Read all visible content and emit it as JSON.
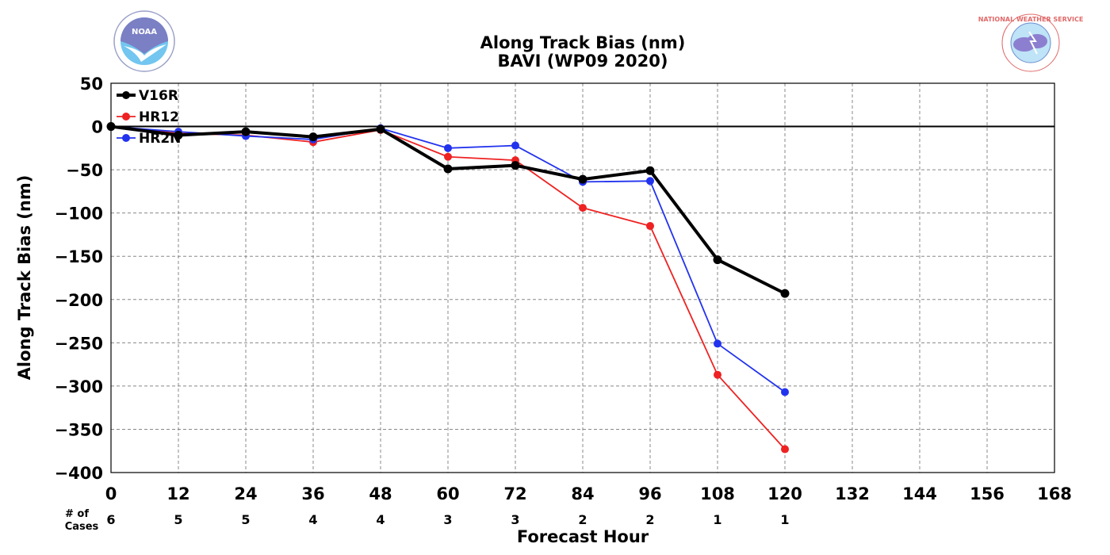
{
  "chart_data": {
    "type": "line",
    "title": "Along Track Bias (nm)",
    "subtitle": "BAVI (WP09 2020)",
    "xlabel": "Forecast Hour",
    "ylabel": "Along Track Bias (nm)",
    "xlim": [
      0,
      168
    ],
    "ylim": [
      -400,
      50
    ],
    "x_ticks": [
      "0",
      "12",
      "24",
      "36",
      "48",
      "60",
      "72",
      "84",
      "96",
      "108",
      "120",
      "132",
      "144",
      "156",
      "168"
    ],
    "y_ticks": [
      "50",
      "0",
      "−50",
      "−100",
      "−150",
      "−200",
      "−250",
      "−300",
      "−350",
      "−400"
    ],
    "grid": true,
    "legend_position": "top-left",
    "cases_label": "# of Cases",
    "cases_label_lines": [
      "# of",
      "Cases"
    ],
    "cases": [
      "6",
      "5",
      "5",
      "4",
      "4",
      "3",
      "3",
      "2",
      "2",
      "1",
      "1"
    ],
    "x": [
      0,
      12,
      24,
      36,
      48,
      60,
      72,
      84,
      96,
      108,
      120
    ],
    "series": [
      {
        "name": "V16R",
        "color": "#000000",
        "values": [
          0,
          -10,
          -6,
          -12,
          -3,
          -49,
          -45,
          -61,
          -51,
          -154,
          -193
        ]
      },
      {
        "name": "HR12",
        "color": "#ee2222",
        "values": [
          0,
          -8,
          -10,
          -18,
          -4,
          -35,
          -39,
          -94,
          -115,
          -287,
          -373
        ]
      },
      {
        "name": "HR2N",
        "color": "#2233ee",
        "values": [
          0,
          -6,
          -11,
          -15,
          -2,
          -25,
          -22,
          -64,
          -63,
          -251,
          -307
        ]
      }
    ]
  },
  "logos": {
    "left": {
      "icon": "noaa-logo",
      "text": "NOAA"
    },
    "right": {
      "icon": "nws-logo",
      "text": "NATIONAL WEATHER SERVICE"
    }
  }
}
